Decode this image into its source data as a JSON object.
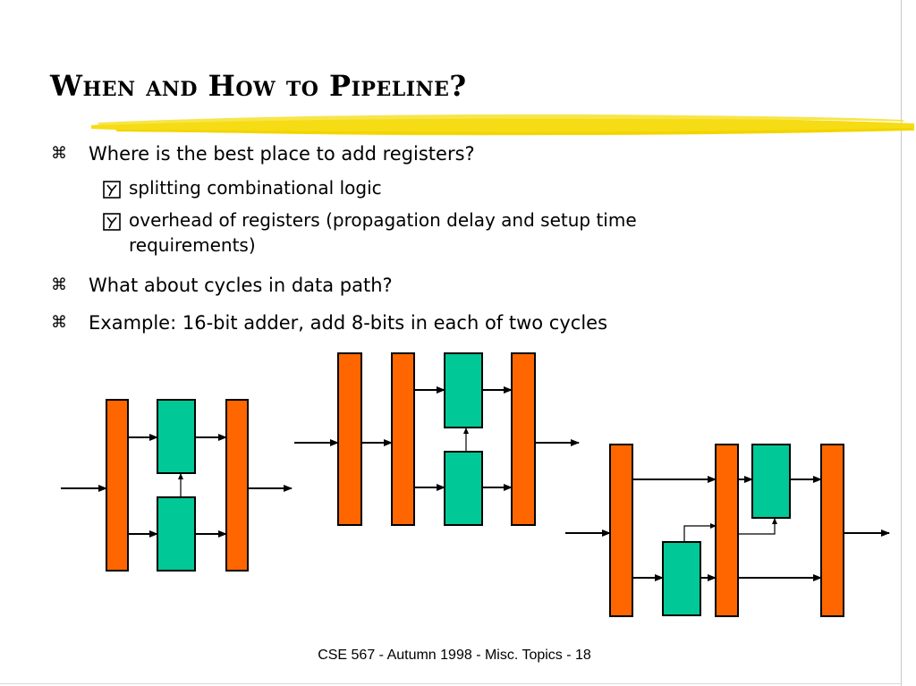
{
  "slide": {
    "title": "When and How to Pipeline?",
    "bullets": [
      {
        "marker_icon": "command-key-icon",
        "text": "Where is the best place to add registers?",
        "sub_bullets": [
          {
            "marker_icon": "checkbox-y-icon",
            "text": "splitting combinational logic"
          },
          {
            "marker_icon": "checkbox-y-icon",
            "text": "overhead of registers (propagation delay and setup time requirements)"
          }
        ]
      },
      {
        "marker_icon": "command-key-icon",
        "text": "What about cycles in data path?"
      },
      {
        "marker_icon": "command-key-icon",
        "text": "Example: 16-bit adder, add 8-bits in each of two cycles"
      }
    ],
    "footer": "CSE 567 - Autumn 1998 - Misc. Topics - 18"
  },
  "colors": {
    "register_fill": "#ff6600",
    "logic_fill": "#00c896",
    "underline_stroke": "#f5dc14",
    "text": "#000000"
  },
  "icons": {
    "bullet_marker": "⌘"
  }
}
